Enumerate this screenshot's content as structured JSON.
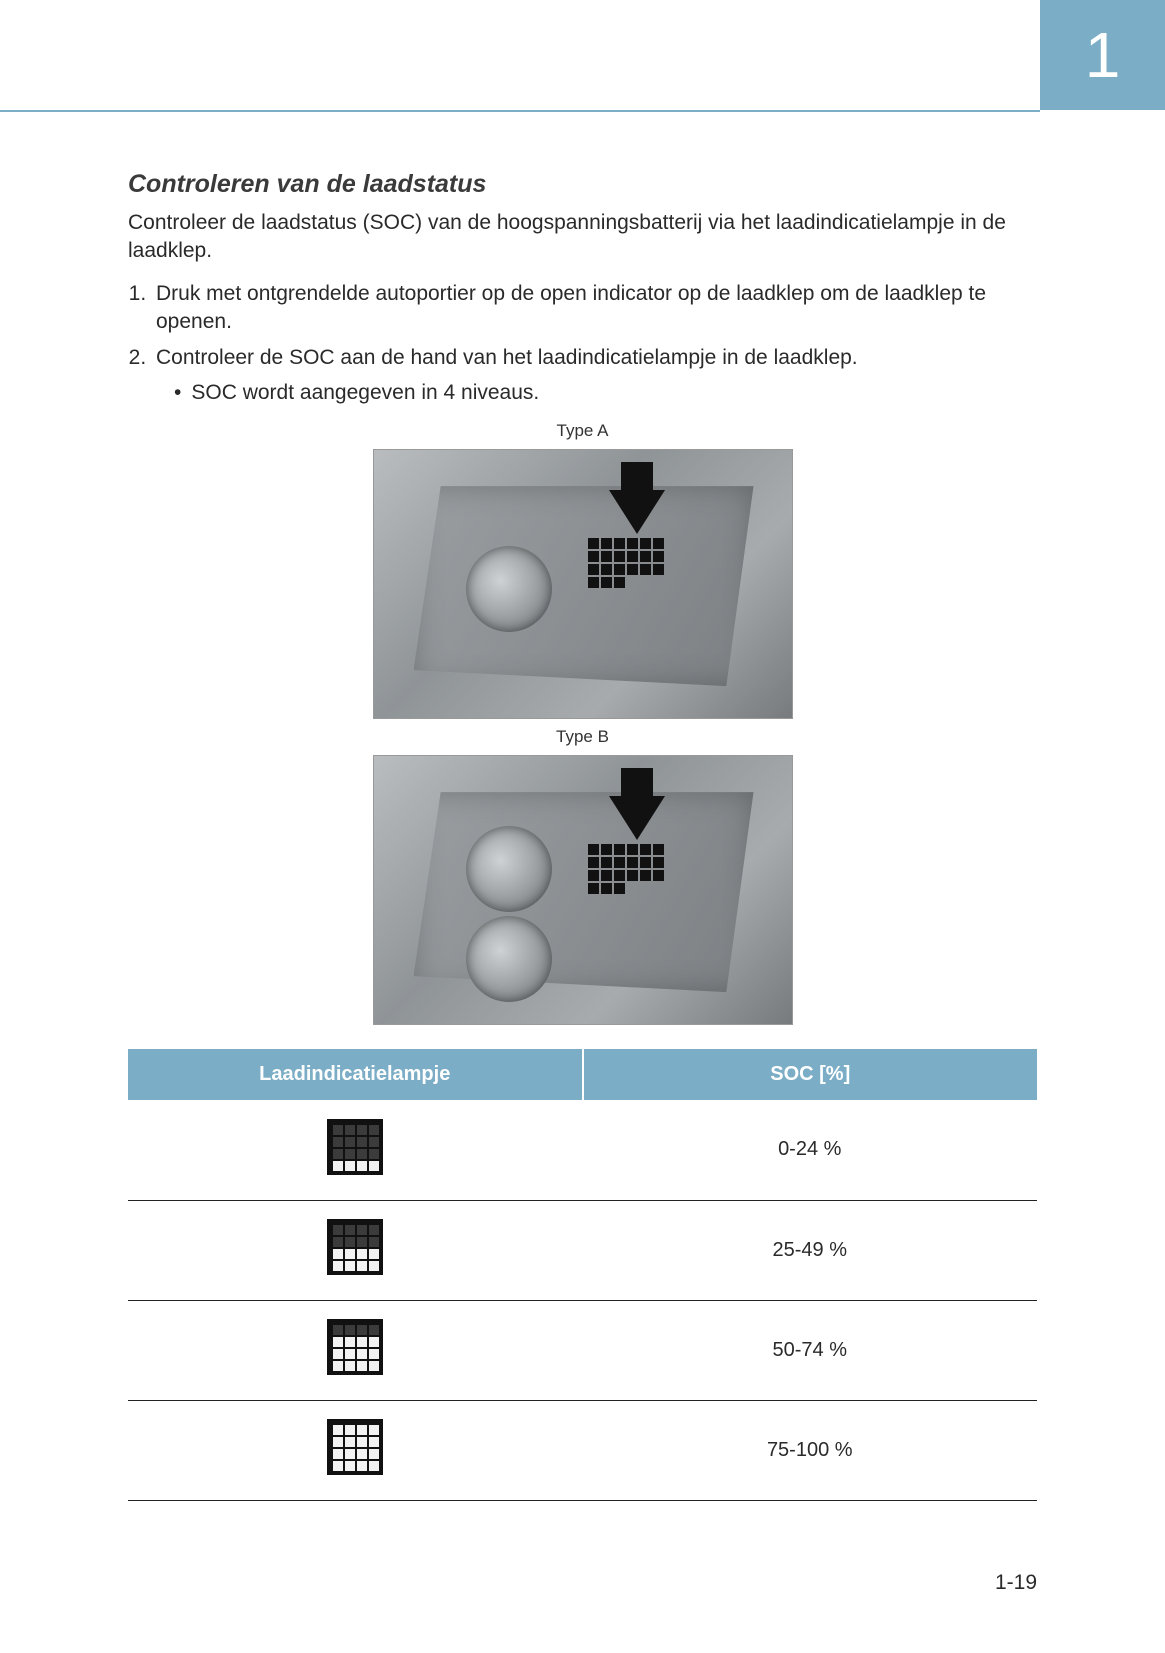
{
  "chapter_number": "1",
  "page_number": "1-19",
  "section_title": "Controleren van de laadstatus",
  "intro_text": "Controleer de laadstatus (SOC) van de hoogspanningsbatterij via het laadindicatielampje in de laadklep.",
  "steps": {
    "s1": "Druk met ontgrendelde autoportier op de open indicator op de laadklep om de laadklep te openen.",
    "s2": "Controleer de SOC aan de hand van het laadindicatielampje in de laadklep.",
    "s2_bullet": "SOC wordt aangegeven in 4 niveaus."
  },
  "figures": {
    "caption_a": "Type A",
    "caption_b": "Type B"
  },
  "table": {
    "header_lamp": "Laadindicatielampje",
    "header_soc": "SOC [%]",
    "rows": [
      {
        "lit_rows": 1,
        "soc": "0-24 %"
      },
      {
        "lit_rows": 2,
        "soc": "25-49 %"
      },
      {
        "lit_rows": 3,
        "soc": "50-74 %"
      },
      {
        "lit_rows": 4,
        "soc": "75-100 %"
      }
    ]
  },
  "colors": {
    "accent": "#7baec6",
    "text": "#2a2a2a",
    "white": "#ffffff",
    "icon_bg": "#111111",
    "icon_dim": "#3b3b3b",
    "icon_on": "#f2f2f2",
    "rule": "#222222"
  }
}
